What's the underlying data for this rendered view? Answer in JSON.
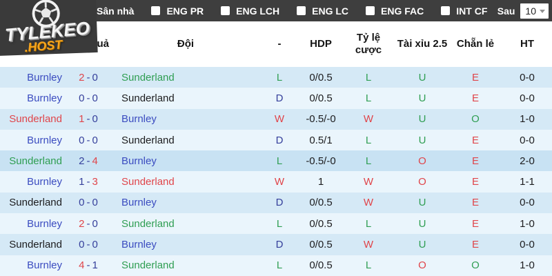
{
  "logo": {
    "title": "TYLEKEO",
    "subtitle": ".HOST"
  },
  "topbar": {
    "filters": [
      {
        "label": "Sân nhà",
        "checked": false
      },
      {
        "label": "ENG PR",
        "checked": false
      },
      {
        "label": "ENG LCH",
        "checked": false
      },
      {
        "label": "ENG LC",
        "checked": false
      },
      {
        "label": "ENG FAC",
        "checked": false
      },
      {
        "label": "INT CF",
        "checked": false
      }
    ],
    "after_label": "Sau",
    "select_value": "10"
  },
  "table": {
    "headers": [
      "Kết quả",
      "Đội",
      "-",
      "HDP",
      "Tỷ lệ cược",
      "Tài xỉu 2.5",
      "Chẵn lẻ",
      "HT"
    ],
    "score_separator": "-",
    "rows": [
      {
        "team1": "Burnley",
        "team1_color": "blue",
        "s1": "2",
        "s1_color": "red",
        "s2": "0",
        "s2_color": "navy",
        "team2": "Sunderland",
        "team2_color": "green",
        "res": "L",
        "res_color": "green",
        "hdp": "0/0.5",
        "odds": "L",
        "odds_color": "green",
        "ou": "U",
        "ou_color": "green",
        "oe": "E",
        "oe_color": "red",
        "ht": "0-0",
        "highlight": false
      },
      {
        "team1": "Burnley",
        "team1_color": "blue",
        "s1": "0",
        "s1_color": "navy",
        "s2": "0",
        "s2_color": "navy",
        "team2": "Sunderland",
        "team2_color": "dark",
        "res": "D",
        "res_color": "navy",
        "hdp": "0/0.5",
        "odds": "L",
        "odds_color": "green",
        "ou": "U",
        "ou_color": "green",
        "oe": "E",
        "oe_color": "red",
        "ht": "0-0",
        "highlight": false
      },
      {
        "team1": "Sunderland",
        "team1_color": "red",
        "s1": "1",
        "s1_color": "red",
        "s2": "0",
        "s2_color": "navy",
        "team2": "Burnley",
        "team2_color": "blue",
        "res": "W",
        "res_color": "red",
        "hdp": "-0.5/-0",
        "odds": "W",
        "odds_color": "red",
        "ou": "U",
        "ou_color": "green",
        "oe": "O",
        "oe_color": "green",
        "ht": "1-0",
        "highlight": false
      },
      {
        "team1": "Burnley",
        "team1_color": "blue",
        "s1": "0",
        "s1_color": "navy",
        "s2": "0",
        "s2_color": "navy",
        "team2": "Sunderland",
        "team2_color": "dark",
        "res": "D",
        "res_color": "navy",
        "hdp": "0.5/1",
        "odds": "L",
        "odds_color": "green",
        "ou": "U",
        "ou_color": "green",
        "oe": "E",
        "oe_color": "red",
        "ht": "0-0",
        "highlight": false
      },
      {
        "team1": "Sunderland",
        "team1_color": "green",
        "s1": "2",
        "s1_color": "navy",
        "s2": "4",
        "s2_color": "red",
        "team2": "Burnley",
        "team2_color": "blue",
        "res": "L",
        "res_color": "green",
        "hdp": "-0.5/-0",
        "odds": "L",
        "odds_color": "green",
        "ou": "O",
        "ou_color": "red",
        "oe": "E",
        "oe_color": "red",
        "ht": "2-0",
        "highlight": true
      },
      {
        "team1": "Burnley",
        "team1_color": "blue",
        "s1": "1",
        "s1_color": "navy",
        "s2": "3",
        "s2_color": "red",
        "team2": "Sunderland",
        "team2_color": "red",
        "res": "W",
        "res_color": "red",
        "hdp": "1",
        "odds": "W",
        "odds_color": "red",
        "ou": "O",
        "ou_color": "red",
        "oe": "E",
        "oe_color": "red",
        "ht": "1-1",
        "highlight": false
      },
      {
        "team1": "Sunderland",
        "team1_color": "dark",
        "s1": "0",
        "s1_color": "navy",
        "s2": "0",
        "s2_color": "navy",
        "team2": "Burnley",
        "team2_color": "blue",
        "res": "D",
        "res_color": "navy",
        "hdp": "0/0.5",
        "odds": "W",
        "odds_color": "red",
        "ou": "U",
        "ou_color": "green",
        "oe": "E",
        "oe_color": "red",
        "ht": "0-0",
        "highlight": false
      },
      {
        "team1": "Burnley",
        "team1_color": "blue",
        "s1": "2",
        "s1_color": "red",
        "s2": "0",
        "s2_color": "navy",
        "team2": "Sunderland",
        "team2_color": "green",
        "res": "L",
        "res_color": "green",
        "hdp": "0/0.5",
        "odds": "L",
        "odds_color": "green",
        "ou": "U",
        "ou_color": "green",
        "oe": "E",
        "oe_color": "red",
        "ht": "1-0",
        "highlight": false
      },
      {
        "team1": "Sunderland",
        "team1_color": "dark",
        "s1": "0",
        "s1_color": "navy",
        "s2": "0",
        "s2_color": "navy",
        "team2": "Burnley",
        "team2_color": "blue",
        "res": "D",
        "res_color": "navy",
        "hdp": "0/0.5",
        "odds": "W",
        "odds_color": "red",
        "ou": "U",
        "ou_color": "green",
        "oe": "E",
        "oe_color": "red",
        "ht": "0-0",
        "highlight": false
      },
      {
        "team1": "Burnley",
        "team1_color": "blue",
        "s1": "4",
        "s1_color": "red",
        "s2": "1",
        "s2_color": "navy",
        "team2": "Sunderland",
        "team2_color": "green",
        "res": "L",
        "res_color": "green",
        "hdp": "0/0.5",
        "odds": "L",
        "odds_color": "green",
        "ou": "O",
        "ou_color": "red",
        "oe": "O",
        "oe_color": "green",
        "ht": "1-0",
        "highlight": false
      }
    ]
  },
  "colors": {
    "topbar_bg": "#3e3e3e",
    "row_odd": "#d5e9f6",
    "row_even": "#eaf5fc",
    "row_hl": "#c8e2f3",
    "blue": "#3b4cc0",
    "green": "#2f9e52",
    "red": "#e0454a",
    "navy": "#353f9b",
    "dark": "#1c1c1e",
    "accent_orange": "#f7a51d"
  }
}
